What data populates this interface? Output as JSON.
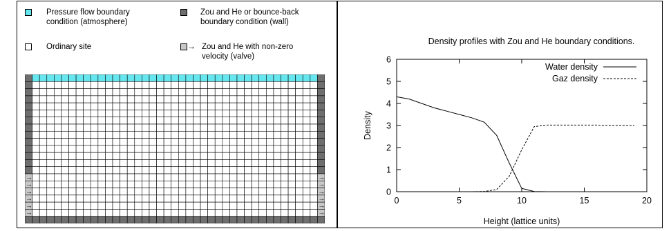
{
  "lattice_panel": {
    "legend": {
      "pressure": "Pressure flow boundary\ncondition (atmosphere)",
      "wall": "Zou and He or bounce-back\nboundary condition (wall)",
      "ordinary": "Ordinary site",
      "valve": "Zou and He with non-zero\nvelocity (valve)"
    },
    "colors": {
      "pressure": "#66e6ee",
      "wall": "#6e6e6e",
      "ordinary": "#ffffff",
      "valve": "#c8c8c8"
    },
    "icons": {
      "valve_arrow": "→"
    },
    "lattice": {
      "columns": 41,
      "rows": 21,
      "valve_rows": 6
    }
  },
  "chart_data": {
    "type": "line",
    "title": "Density profiles with Zou and He boundary conditions.",
    "xlabel": "Height (lattice units)",
    "ylabel": "Density",
    "xlim": [
      0,
      20
    ],
    "ylim": [
      0,
      6
    ],
    "xticks": [
      0,
      5,
      10,
      15,
      20
    ],
    "yticks": [
      0,
      1,
      2,
      3,
      4,
      5,
      6
    ],
    "legend_position": "top-right",
    "series": [
      {
        "name": "Water density",
        "style": "solid",
        "x": [
          0,
          1,
          2,
          3,
          4,
          5,
          6,
          7,
          8,
          9,
          10,
          11,
          12,
          13,
          14,
          15,
          16,
          17,
          18,
          19
        ],
        "y": [
          4.3,
          4.2,
          4.0,
          3.8,
          3.65,
          3.5,
          3.35,
          3.15,
          2.55,
          1.3,
          0.15,
          0.01,
          0,
          0,
          0,
          0,
          0,
          0,
          0,
          0
        ]
      },
      {
        "name": "Gaz density",
        "style": "dashed",
        "x": [
          0,
          1,
          2,
          3,
          4,
          5,
          6,
          7,
          8,
          9,
          10,
          11,
          12,
          13,
          14,
          15,
          16,
          17,
          18,
          19
        ],
        "y": [
          0,
          0,
          0,
          0,
          0,
          0,
          0,
          0.01,
          0.1,
          0.7,
          1.9,
          2.95,
          3.02,
          3.02,
          3.02,
          3.02,
          3.02,
          3.01,
          3.01,
          3.0
        ]
      }
    ]
  }
}
